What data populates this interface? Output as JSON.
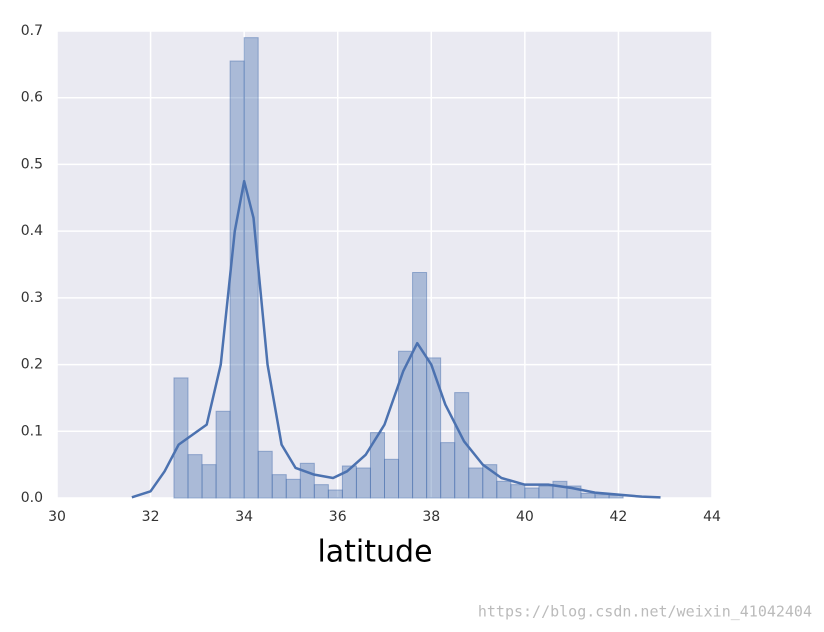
{
  "chart_data": {
    "type": "histogram",
    "xlabel": "latitude",
    "bins": [
      32.5,
      32.8,
      33.1,
      33.4,
      33.7,
      34.0,
      34.3,
      34.6,
      34.9,
      35.2,
      35.5,
      35.8,
      36.1,
      36.4,
      36.7,
      37.0,
      37.3,
      37.6,
      37.9,
      38.2,
      38.5,
      38.8,
      39.1,
      39.4,
      39.7,
      40.0,
      40.3,
      40.6,
      40.9,
      41.2,
      41.5,
      41.8,
      42.1
    ],
    "values": [
      0.18,
      0.065,
      0.05,
      0.13,
      0.655,
      0.69,
      0.07,
      0.035,
      0.028,
      0.052,
      0.02,
      0.012,
      0.048,
      0.045,
      0.098,
      0.058,
      0.22,
      0.338,
      0.21,
      0.083,
      0.158,
      0.045,
      0.05,
      0.025,
      0.02,
      0.015,
      0.018,
      0.025,
      0.018,
      0.007,
      0.005,
      0.004
    ],
    "color": "#4c72b0",
    "kde": {
      "x": [
        31.6,
        32.0,
        32.3,
        32.6,
        32.9,
        33.2,
        33.5,
        33.8,
        34.0,
        34.2,
        34.5,
        34.8,
        35.1,
        35.5,
        35.9,
        36.2,
        36.6,
        37.0,
        37.4,
        37.7,
        38.0,
        38.3,
        38.7,
        39.1,
        39.5,
        40.0,
        40.5,
        41.0,
        41.5,
        42.0,
        42.5,
        42.9
      ],
      "values": [
        0.001,
        0.01,
        0.04,
        0.08,
        0.095,
        0.11,
        0.2,
        0.4,
        0.475,
        0.42,
        0.2,
        0.08,
        0.045,
        0.035,
        0.03,
        0.04,
        0.065,
        0.11,
        0.19,
        0.232,
        0.2,
        0.14,
        0.085,
        0.05,
        0.03,
        0.02,
        0.02,
        0.015,
        0.008,
        0.005,
        0.002,
        0.001
      ],
      "color": "#4c72b0"
    },
    "xlim": [
      30,
      44
    ],
    "xticks": [
      30,
      32,
      34,
      36,
      38,
      40,
      42,
      44
    ],
    "ylim": [
      0,
      0.7
    ],
    "yticks": [
      {
        "value": 0,
        "label": "0.0"
      },
      0.1,
      0.2,
      0.3,
      0.4,
      0.5,
      0.6,
      0.7
    ],
    "grid": true
  },
  "watermark": "https://blog.csdn.net/weixin_41042404"
}
